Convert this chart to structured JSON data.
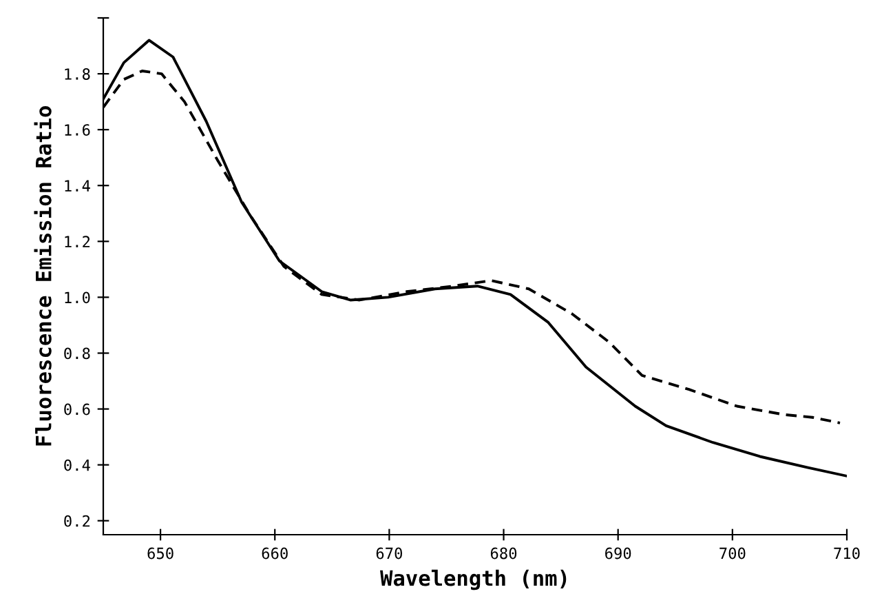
{
  "chart_data": {
    "type": "line",
    "xlabel": "Wavelength (nm)",
    "ylabel": "Fluorescence Emission Ratio",
    "xlim": [
      645,
      710
    ],
    "ylim": [
      0.15,
      2.0
    ],
    "xticks": [
      650,
      660,
      670,
      680,
      690,
      700,
      710
    ],
    "yticks": [
      0.2,
      0.4,
      0.6,
      0.8,
      {
        "value": 1.0,
        "label": "1.0"
      },
      1.2,
      1.4,
      1.6,
      1.8,
      {
        "value": 2.0,
        "label": null
      }
    ],
    "grid": false,
    "marker": "none",
    "series": [
      {
        "color": "#000000",
        "line_style": "solid",
        "x": [
          645,
          646.8,
          649.0,
          651.1,
          654.0,
          657.1,
          660.4,
          664.1,
          666.6,
          669.9,
          674.0,
          677.7,
          680.6,
          683.9,
          687.2,
          691.5,
          694.2,
          698.3,
          702.4,
          706.6,
          710.0
        ],
        "values": [
          1.71,
          1.84,
          1.92,
          1.86,
          1.63,
          1.34,
          1.13,
          1.02,
          0.99,
          1.0,
          1.03,
          1.04,
          1.01,
          0.91,
          0.75,
          0.61,
          0.54,
          0.48,
          0.43,
          0.39,
          0.36
        ]
      },
      {
        "color": "#000000",
        "line_style": "dashed",
        "x": [
          645,
          646.8,
          648.4,
          650.1,
          652.1,
          655.0,
          657.9,
          660.8,
          664.1,
          667.4,
          671.5,
          675.6,
          678.9,
          682.2,
          686.0,
          689.2,
          692.1,
          696.2,
          700.4,
          704.5,
          707.0,
          709.4
        ],
        "values": [
          1.68,
          1.78,
          1.81,
          1.8,
          1.7,
          1.49,
          1.29,
          1.11,
          1.01,
          0.99,
          1.02,
          1.04,
          1.06,
          1.03,
          0.94,
          0.84,
          0.72,
          0.67,
          0.61,
          0.58,
          0.57,
          0.55
        ]
      }
    ]
  }
}
